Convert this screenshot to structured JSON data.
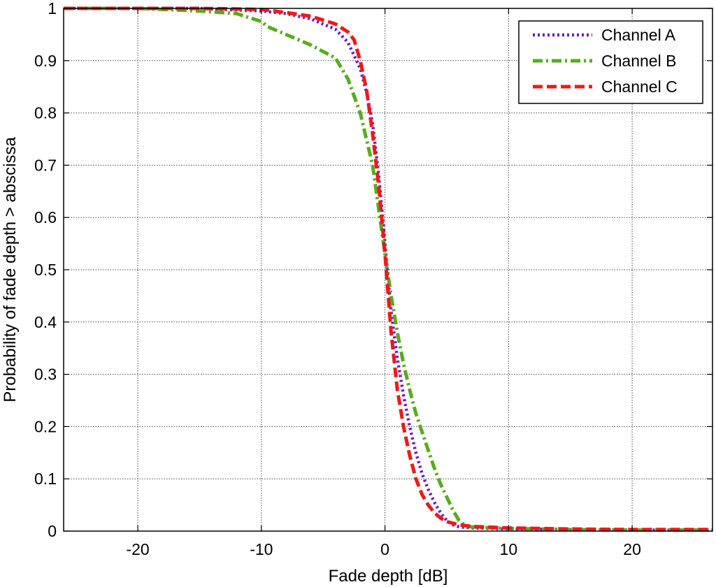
{
  "chart_data": {
    "type": "line",
    "xlabel": "Fade depth [dB]",
    "ylabel": "Probability of fade depth > abscissa",
    "xlim": [
      -26,
      26.5
    ],
    "ylim": [
      0,
      1
    ],
    "xticks": [
      -20,
      -10,
      0,
      10,
      20
    ],
    "yticks": [
      0,
      0.1,
      0.2,
      0.3,
      0.4,
      0.5,
      0.6,
      0.7,
      0.8,
      0.9,
      1
    ],
    "xtick_labels": [
      "-20",
      "-10",
      "0",
      "10",
      "20"
    ],
    "ytick_labels": [
      "0",
      "0.1",
      "0.2",
      "0.3",
      "0.4",
      "0.5",
      "0.6",
      "0.7",
      "0.8",
      "0.9",
      "1"
    ],
    "grid": true,
    "legend_position": "top-right",
    "series": [
      {
        "name": "Channel A",
        "color": "#6a1fbf",
        "style": "dotted",
        "x": [
          -26,
          -20,
          -15,
          -10,
          -8,
          -6,
          -4,
          -3,
          -2,
          -1.5,
          -1,
          -0.5,
          0,
          0.5,
          1,
          1.5,
          2,
          2.5,
          3,
          3.5,
          4,
          4.5,
          5,
          5.5,
          6,
          7,
          10,
          15,
          20,
          26.5
        ],
        "y": [
          1.0,
          1.0,
          1.0,
          0.995,
          0.99,
          0.98,
          0.96,
          0.935,
          0.885,
          0.84,
          0.78,
          0.68,
          0.55,
          0.42,
          0.33,
          0.26,
          0.2,
          0.15,
          0.11,
          0.08,
          0.055,
          0.035,
          0.02,
          0.012,
          0.008,
          0.006,
          0.004,
          0.003,
          0.002,
          0.002
        ]
      },
      {
        "name": "Channel B",
        "color": "#5aaa1e",
        "style": "dashdot",
        "x": [
          -26,
          -20,
          -15,
          -12,
          -10,
          -9.5,
          -9,
          -8,
          -6,
          -4,
          -3,
          -2,
          -1,
          0,
          0.5,
          1,
          1.5,
          2,
          2.5,
          3,
          3.5,
          4,
          4.5,
          5,
          5.5,
          6,
          6.5,
          7,
          10,
          15,
          20,
          26.5
        ],
        "y": [
          1.0,
          1.0,
          0.995,
          0.99,
          0.975,
          0.965,
          0.96,
          0.95,
          0.93,
          0.905,
          0.865,
          0.8,
          0.7,
          0.53,
          0.45,
          0.38,
          0.32,
          0.27,
          0.225,
          0.19,
          0.155,
          0.12,
          0.09,
          0.065,
          0.04,
          0.02,
          0.01,
          0.008,
          0.005,
          0.003,
          0.002,
          0.002
        ]
      },
      {
        "name": "Channel C",
        "color": "#f01818",
        "style": "dashed",
        "x": [
          -26,
          -20,
          -15,
          -10,
          -8,
          -6,
          -4,
          -3,
          -2.5,
          -2,
          -1.5,
          -1,
          -0.5,
          0,
          0.5,
          1,
          1.5,
          2,
          2.5,
          3,
          3.5,
          4,
          4.5,
          5,
          6,
          7,
          10,
          15,
          20,
          26.5
        ],
        "y": [
          1.0,
          1.0,
          1.0,
          0.998,
          0.992,
          0.985,
          0.97,
          0.955,
          0.94,
          0.9,
          0.845,
          0.76,
          0.66,
          0.53,
          0.38,
          0.27,
          0.2,
          0.145,
          0.1,
          0.07,
          0.05,
          0.035,
          0.025,
          0.018,
          0.012,
          0.009,
          0.006,
          0.004,
          0.003,
          0.003
        ]
      }
    ]
  }
}
